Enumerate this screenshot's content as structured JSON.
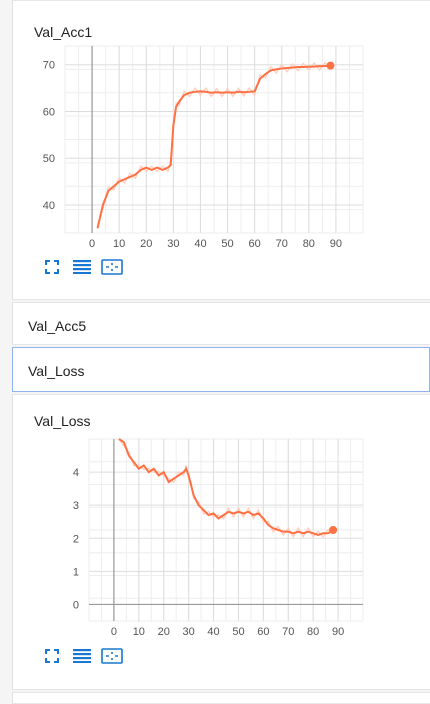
{
  "accent_color": "#ff7043",
  "raw_color": "#ffccbc",
  "cards": {
    "acc1": {
      "title": "Val_Acc1"
    },
    "acc5": {
      "title": "Val_Acc5"
    },
    "loss_header": {
      "title": "Val_Loss"
    },
    "loss": {
      "title": "Val_Loss"
    }
  },
  "tools": [
    "fullscreen-icon",
    "list-icon",
    "fit-domain-icon"
  ],
  "chart_data": [
    {
      "type": "line",
      "title": "Val_Acc1",
      "xlim": [
        -10,
        100
      ],
      "ylim": [
        34,
        74
      ],
      "x_ticks": [
        0,
        10,
        20,
        30,
        40,
        50,
        60,
        70,
        80,
        90
      ],
      "y_ticks": [
        40,
        50,
        60,
        70
      ],
      "grid": true,
      "series": [
        {
          "x": [
            2,
            4,
            6,
            8,
            10,
            12,
            14,
            16,
            18,
            20,
            22,
            24,
            26,
            28,
            29,
            30,
            31,
            32,
            34,
            36,
            38,
            40,
            42,
            44,
            46,
            48,
            50,
            52,
            54,
            56,
            58,
            60,
            62,
            64,
            66,
            68,
            70,
            72,
            74,
            76,
            78,
            80,
            82,
            84,
            86,
            88
          ],
          "y": [
            35,
            40,
            43,
            44,
            45,
            45.5,
            46,
            46.5,
            47.5,
            48,
            47.5,
            48,
            47.5,
            48,
            48.5,
            57,
            61,
            62,
            63.5,
            64,
            64.2,
            64.3,
            64.2,
            64,
            64.1,
            64,
            64.1,
            64,
            64.2,
            64.1,
            64.2,
            64.3,
            67,
            68,
            68.8,
            69,
            69.2,
            69.3,
            69.4,
            69.5,
            69.5,
            69.6,
            69.6,
            69.7,
            69.7,
            69.8
          ]
        }
      ],
      "last_point": {
        "x": 88,
        "y": 69.8
      }
    },
    {
      "type": "line",
      "title": "Val_Loss",
      "xlim": [
        -10,
        100
      ],
      "ylim": [
        -0.5,
        5.0
      ],
      "x_ticks": [
        0,
        10,
        20,
        30,
        40,
        50,
        60,
        70,
        80,
        90
      ],
      "y_ticks": [
        0,
        1,
        2,
        3,
        4
      ],
      "grid": true,
      "series": [
        {
          "x": [
            2,
            4,
            6,
            8,
            10,
            12,
            14,
            16,
            18,
            20,
            22,
            24,
            26,
            28,
            29,
            30,
            31,
            32,
            34,
            36,
            38,
            40,
            42,
            44,
            46,
            48,
            50,
            52,
            54,
            56,
            58,
            60,
            62,
            64,
            66,
            68,
            70,
            72,
            74,
            76,
            78,
            80,
            82,
            84,
            86,
            88
          ],
          "y": [
            5.0,
            4.9,
            4.5,
            4.3,
            4.1,
            4.2,
            4.0,
            4.1,
            3.9,
            4.0,
            3.7,
            3.8,
            3.9,
            4.0,
            4.1,
            3.9,
            3.6,
            3.3,
            3.0,
            2.85,
            2.7,
            2.75,
            2.6,
            2.7,
            2.8,
            2.75,
            2.8,
            2.75,
            2.8,
            2.7,
            2.75,
            2.6,
            2.4,
            2.3,
            2.25,
            2.2,
            2.2,
            2.15,
            2.2,
            2.15,
            2.2,
            2.15,
            2.1,
            2.15,
            2.15,
            2.25
          ]
        }
      ],
      "last_point": {
        "x": 88,
        "y": 2.25
      }
    }
  ]
}
